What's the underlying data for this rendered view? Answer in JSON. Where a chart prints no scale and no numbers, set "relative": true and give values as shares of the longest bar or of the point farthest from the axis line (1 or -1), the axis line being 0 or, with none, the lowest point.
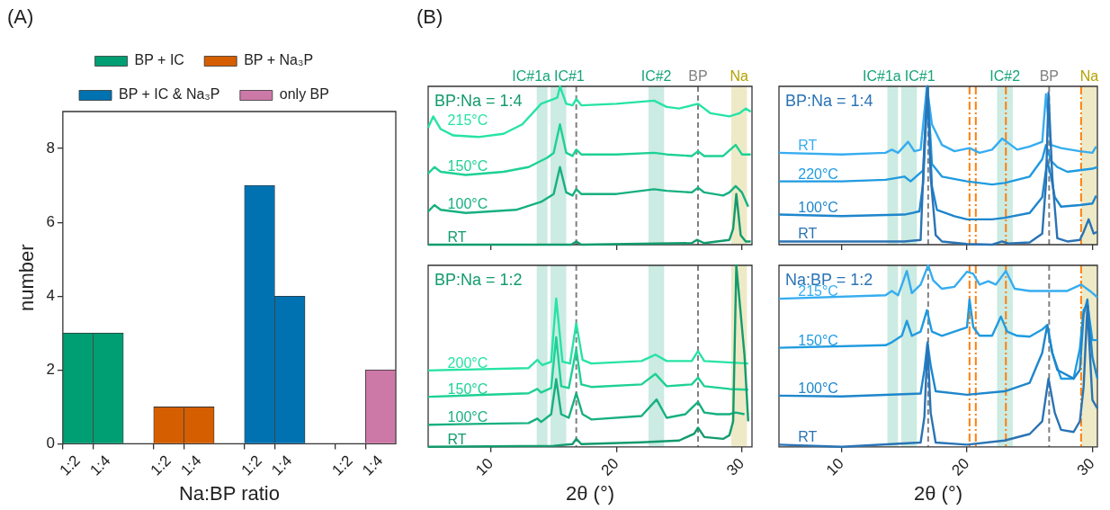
{
  "chart_data": [
    {
      "type": "bar",
      "xlabel": "Na:BP ratio",
      "ylabel": "number",
      "annotations": [
        "(A)"
      ],
      "categories": [
        "1:2",
        "1:4",
        null,
        "1:2",
        "1:4",
        null,
        "1:2",
        "1:4",
        null,
        "1:2",
        "1:4"
      ],
      "stacked": true,
      "ylim": [
        0,
        9
      ],
      "yticks": [
        0,
        2,
        4,
        6,
        8
      ],
      "legend": "top",
      "series": [
        {
          "name": "BP + IC",
          "color": "#009e73",
          "values": [
            3,
            3,
            null,
            null,
            null,
            null,
            null,
            null,
            null,
            null,
            null
          ]
        },
        {
          "name": "BP + Na₃P",
          "color": "#d55e00",
          "values": [
            null,
            null,
            null,
            1,
            1,
            null,
            null,
            null,
            null,
            null,
            null
          ]
        },
        {
          "name": "BP + IC & Na₃P",
          "color": "#0072b2",
          "values": [
            null,
            null,
            null,
            null,
            null,
            null,
            7,
            4,
            null,
            null,
            null
          ]
        },
        {
          "name": "only BP",
          "color": "#cc79a7",
          "values": [
            null,
            null,
            null,
            null,
            null,
            null,
            null,
            null,
            null,
            0,
            2
          ]
        }
      ]
    },
    {
      "type": "line",
      "title": "BP:Na = 1:4",
      "annotations": [
        "(B)"
      ],
      "relative": true,
      "marker": "none",
      "tick_labels": false,
      "xlim": [
        5,
        30.8
      ],
      "xticks": [
        10,
        20,
        30
      ],
      "bands": [
        {
          "axis": "x",
          "from": 13.65,
          "to": 14.5,
          "label": "IC#1a",
          "color": "#16a37a"
        },
        {
          "axis": "x",
          "from": 14.75,
          "to": 16.0,
          "label": "IC#1",
          "color": "#16a37a"
        },
        {
          "axis": "x",
          "from": 22.55,
          "to": 23.8,
          "label": "IC#2",
          "color": "#16a37a"
        },
        {
          "axis": "x",
          "from": 29.15,
          "to": 30.4,
          "label": "Na",
          "color": "#b3a100"
        }
      ],
      "ref_lines": [
        {
          "axis": "x",
          "value": 16.8,
          "color": "#808080",
          "line_style": "dashed"
        },
        {
          "axis": "x",
          "value": 26.5,
          "label": "BP",
          "color": "#808080",
          "line_style": "dashed"
        }
      ],
      "series": [
        {
          "name": "RT",
          "color": "#129b6e",
          "x": [
            5,
            16.4,
            16.8,
            17.2,
            26,
            26.4,
            27,
            29,
            29.3,
            29.55,
            29.9,
            30.3,
            30.7
          ],
          "values": [
            0,
            0,
            0.02,
            0,
            0.01,
            0.03,
            0.01,
            0.03,
            0.1,
            0.32,
            0.06,
            0.02,
            0.02
          ]
        },
        {
          "name": "100°C",
          "color": "#17b080",
          "x": [
            5,
            5.5,
            6,
            8,
            12,
            14,
            15,
            15.5,
            16,
            16.5,
            16.8,
            17.2,
            20,
            23,
            24,
            26,
            26.5,
            27,
            28.5,
            29,
            29.5,
            30,
            30.5
          ],
          "values": [
            0.21,
            0.25,
            0.22,
            0.2,
            0.22,
            0.27,
            0.32,
            0.49,
            0.33,
            0.31,
            0.35,
            0.32,
            0.32,
            0.35,
            0.34,
            0.33,
            0.36,
            0.33,
            0.31,
            0.33,
            0.37,
            0.33,
            0.24
          ]
        },
        {
          "name": "150°C",
          "color": "#1dd194",
          "x": [
            5,
            5.5,
            6,
            8,
            11,
            13,
            14.5,
            15,
            15.5,
            16,
            16.5,
            16.8,
            17.2,
            20,
            23,
            24,
            26,
            26.5,
            27,
            28.5,
            29.5,
            30,
            30.7
          ],
          "values": [
            0.45,
            0.49,
            0.46,
            0.44,
            0.46,
            0.49,
            0.55,
            0.58,
            0.76,
            0.58,
            0.56,
            0.6,
            0.57,
            0.57,
            0.58,
            0.57,
            0.56,
            0.59,
            0.56,
            0.56,
            0.63,
            0.57,
            0.57
          ]
        },
        {
          "name": "215°C",
          "color": "#27e3a6",
          "x": [
            5,
            5.4,
            6,
            7,
            9,
            11,
            12.5,
            14,
            15,
            15.3,
            15.5,
            16,
            16.5,
            16.8,
            17.2,
            20,
            23,
            24,
            25,
            26,
            26.5,
            27.5,
            29,
            29.8,
            30.3,
            30.7
          ],
          "values": [
            0.74,
            0.81,
            0.73,
            0.69,
            0.68,
            0.7,
            0.76,
            0.89,
            0.92,
            0.93,
            1,
            0.89,
            0.88,
            0.92,
            0.88,
            0.89,
            0.91,
            0.87,
            0.86,
            0.88,
            0.89,
            0.83,
            0.81,
            0.83,
            0.86,
            0.84
          ]
        }
      ]
    },
    {
      "type": "line",
      "title": "BP:Na = 1:4",
      "relative": true,
      "marker": "none",
      "tick_labels": false,
      "xlim": [
        5,
        30.4
      ],
      "xticks": [
        10,
        20,
        30
      ],
      "bands": [
        {
          "axis": "x",
          "from": 13.65,
          "to": 14.5,
          "label": "IC#1a",
          "color": "#16a37a"
        },
        {
          "axis": "x",
          "from": 14.75,
          "to": 16.0,
          "label": "IC#1",
          "color": "#16a37a"
        },
        {
          "axis": "x",
          "from": 22.4,
          "to": 23.65,
          "label": "IC#2",
          "color": "#16a37a"
        },
        {
          "axis": "x",
          "from": 29.1,
          "to": 30.4,
          "label": "Na",
          "color": "#b3a100"
        }
      ],
      "ref_lines": [
        {
          "axis": "x",
          "value": 16.9,
          "color": "#808080",
          "line_style": "dashed"
        },
        {
          "axis": "x",
          "value": 26.55,
          "label": "BP",
          "color": "#808080",
          "line_style": "dashed"
        },
        {
          "axis": "x",
          "value": 20.2,
          "color": "#ff7f0e",
          "line_style": "dashdot"
        },
        {
          "axis": "x",
          "value": 20.7,
          "color": "#ff7f0e",
          "line_style": "dashdot"
        },
        {
          "axis": "x",
          "value": 23.1,
          "color": "#ff7f0e",
          "line_style": "dashdot"
        },
        {
          "axis": "x",
          "value": 29.1,
          "color": "#ff7f0e",
          "line_style": "dashdot"
        }
      ],
      "series": [
        {
          "name": "RT",
          "color": "#2a73b5",
          "x": [
            5,
            10,
            15,
            16.3,
            16.6,
            16.85,
            17.1,
            17.5,
            18,
            20,
            22,
            22.8,
            23.3,
            25,
            26,
            26.3,
            26.5,
            26.8,
            27.2,
            28,
            29,
            29.3,
            29.7,
            30.1,
            30.4
          ],
          "values": [
            0.02,
            0.02,
            0.02,
            0.03,
            0.63,
            1,
            0.43,
            0.06,
            0.02,
            0.004,
            0,
            0.02,
            0.008,
            0.014,
            0.07,
            0.39,
            0.96,
            0.43,
            0.04,
            0.02,
            0.03,
            0.08,
            0.16,
            0.07,
            0.08
          ]
        },
        {
          "name": "100°C",
          "color": "#1e86cc",
          "x": [
            5,
            10,
            15,
            16.2,
            16.5,
            16.85,
            17.2,
            17.6,
            19,
            20,
            22,
            23,
            25,
            26,
            26.4,
            26.7,
            27,
            27.5,
            29,
            30,
            30.3
          ],
          "values": [
            0.19,
            0.18,
            0.19,
            0.21,
            0.39,
            0.98,
            0.37,
            0.22,
            0.18,
            0.16,
            0.16,
            0.17,
            0.2,
            0.3,
            0.53,
            0.43,
            0.3,
            0.24,
            0.25,
            0.26,
            0.31
          ]
        },
        {
          "name": "220°C",
          "color": "#1f9be0",
          "x": [
            5,
            10,
            13.5,
            15,
            15.5,
            16.5,
            16.85,
            17.2,
            18,
            20,
            22,
            23,
            25,
            26,
            26.3,
            26.7,
            27.2,
            28,
            30,
            30.4
          ],
          "values": [
            0.4,
            0.4,
            0.41,
            0.43,
            0.4,
            0.47,
            1,
            0.51,
            0.43,
            0.4,
            0.38,
            0.39,
            0.43,
            0.54,
            0.63,
            0.53,
            0.49,
            0.46,
            0.48,
            0.49
          ]
        },
        {
          "name": "RT",
          "color": "#36adf0",
          "x": [
            5,
            10,
            13.5,
            14,
            14.5,
            15.3,
            15.8,
            16.3,
            16.8,
            17.2,
            18,
            19,
            20.2,
            21,
            22,
            22.8,
            23.5,
            24,
            25,
            26,
            26.3,
            26.7,
            27.5,
            29,
            30,
            30.3
          ],
          "values": [
            0.58,
            0.57,
            0.58,
            0.6,
            0.58,
            0.65,
            0.59,
            0.6,
            1,
            0.76,
            0.63,
            0.59,
            0.61,
            0.58,
            0.6,
            0.67,
            0.63,
            0.6,
            0.62,
            0.65,
            0.95,
            0.63,
            0.61,
            0.59,
            0.58,
            0.62
          ]
        }
      ]
    },
    {
      "type": "line",
      "title": "BP:Na = 1:2",
      "relative": true,
      "marker": "none",
      "tick_labels": "x",
      "xlabel": "2θ (°)",
      "xlim": [
        5,
        30.8
      ],
      "xticks": [
        10,
        20,
        30
      ],
      "bands": [
        {
          "axis": "x",
          "from": 13.65,
          "to": 14.5,
          "color": "#16a37a"
        },
        {
          "axis": "x",
          "from": 14.75,
          "to": 16.0,
          "color": "#16a37a"
        },
        {
          "axis": "x",
          "from": 22.55,
          "to": 23.8,
          "color": "#16a37a"
        },
        {
          "axis": "x",
          "from": 29.15,
          "to": 30.4,
          "color": "#b3a100"
        }
      ],
      "ref_lines": [
        {
          "axis": "x",
          "value": 16.8,
          "color": "#808080",
          "line_style": "dashed"
        },
        {
          "axis": "x",
          "value": 26.5,
          "color": "#808080",
          "line_style": "dashed"
        }
      ],
      "series": [
        {
          "name": "RT",
          "color": "#129b6e",
          "x": [
            5,
            15,
            16.5,
            16.8,
            17.2,
            22,
            25,
            26.2,
            26.5,
            27,
            28.5,
            29,
            29.3,
            29.55,
            30.2,
            30.5
          ],
          "values": [
            0,
            0.006,
            0.015,
            0.044,
            0.015,
            0.025,
            0.035,
            0.073,
            0.106,
            0.054,
            0.044,
            0.064,
            0.141,
            1,
            0.508,
            0.141
          ]
        },
        {
          "name": "100°C",
          "color": "#17b080",
          "x": [
            5,
            13,
            13.7,
            14,
            14.8,
            15.2,
            15.6,
            16.2,
            16.8,
            17.3,
            18,
            22,
            23.2,
            24,
            25.5,
            26.5,
            27,
            28,
            29,
            29.5,
            30.2
          ],
          "values": [
            0.122,
            0.131,
            0.156,
            0.137,
            0.18,
            0.373,
            0.18,
            0.16,
            0.295,
            0.18,
            0.151,
            0.17,
            0.261,
            0.16,
            0.18,
            0.247,
            0.189,
            0.18,
            0.18,
            0.189,
            0.18
          ]
        },
        {
          "name": "150°C",
          "color": "#1dd194",
          "x": [
            5,
            13,
            13.7,
            14,
            14.8,
            15.2,
            15.6,
            16.2,
            16.8,
            17.2,
            18,
            22,
            23.1,
            24,
            26,
            26.5,
            27,
            29,
            30.5
          ],
          "values": [
            0.276,
            0.295,
            0.319,
            0.299,
            0.324,
            0.604,
            0.334,
            0.324,
            0.537,
            0.344,
            0.33,
            0.344,
            0.402,
            0.334,
            0.344,
            0.382,
            0.334,
            0.319,
            0.315
          ]
        },
        {
          "name": "200°C",
          "color": "#27e3a6",
          "x": [
            5,
            13,
            13.7,
            14.1,
            14.8,
            15.2,
            15.7,
            16.3,
            16.8,
            17.3,
            18,
            22,
            23.1,
            24,
            26,
            26.5,
            27,
            30.5
          ],
          "values": [
            0.421,
            0.434,
            0.479,
            0.45,
            0.469,
            0.817,
            0.469,
            0.459,
            0.681,
            0.479,
            0.459,
            0.473,
            0.508,
            0.473,
            0.473,
            0.527,
            0.473,
            0.459
          ]
        }
      ]
    },
    {
      "type": "line",
      "title": "Na:BP = 1:2",
      "relative": true,
      "marker": "none",
      "tick_labels": "x",
      "xlabel": "2θ (°)",
      "xlim": [
        5,
        30.4
      ],
      "xticks": [
        10,
        20,
        30
      ],
      "bands": [
        {
          "axis": "x",
          "from": 13.65,
          "to": 14.5,
          "color": "#16a37a"
        },
        {
          "axis": "x",
          "from": 14.75,
          "to": 16.0,
          "color": "#16a37a"
        },
        {
          "axis": "x",
          "from": 22.4,
          "to": 23.65,
          "color": "#16a37a"
        },
        {
          "axis": "x",
          "from": 29.1,
          "to": 30.4,
          "color": "#b3a100"
        }
      ],
      "ref_lines": [
        {
          "axis": "x",
          "value": 16.9,
          "color": "#808080",
          "line_style": "dashed"
        },
        {
          "axis": "x",
          "value": 26.55,
          "color": "#808080",
          "line_style": "dashed"
        },
        {
          "axis": "x",
          "value": 20.2,
          "color": "#ff7f0e",
          "line_style": "dashdot"
        },
        {
          "axis": "x",
          "value": 20.7,
          "color": "#ff7f0e",
          "line_style": "dashdot"
        },
        {
          "axis": "x",
          "value": 23.1,
          "color": "#ff7f0e",
          "line_style": "dashdot"
        },
        {
          "axis": "x",
          "value": 29.1,
          "color": "#ff7f0e",
          "line_style": "dashdot"
        }
      ],
      "series": [
        {
          "name": "RT",
          "color": "#2a73b5",
          "x": [
            5,
            10,
            16.3,
            16.6,
            16.85,
            17.1,
            17.5,
            20,
            23,
            25,
            26,
            26.5,
            27,
            27.5,
            28.5,
            29,
            29.3,
            29.6,
            30,
            30.4
          ],
          "values": [
            0.012,
            0,
            0.024,
            0.165,
            0.565,
            0.188,
            0.024,
            0.012,
            0.035,
            0.071,
            0.141,
            0.376,
            0.188,
            0.094,
            0.082,
            0.141,
            0.329,
            0.776,
            0.259,
            0.212
          ]
        },
        {
          "name": "100°C",
          "color": "#1e86cc",
          "x": [
            5,
            10,
            16.3,
            16.6,
            16.85,
            17.1,
            17.5,
            20,
            23,
            25,
            26,
            26.4,
            26.8,
            27.2,
            28.5,
            29,
            29.3,
            29.6,
            30,
            30.4
          ],
          "values": [
            0.282,
            0.278,
            0.294,
            0.424,
            0.576,
            0.447,
            0.306,
            0.287,
            0.306,
            0.353,
            0.518,
            0.671,
            0.518,
            0.424,
            0.376,
            0.424,
            0.729,
            0.812,
            0.494,
            0.376
          ]
        },
        {
          "name": "150°C",
          "color": "#1f9be0",
          "x": [
            5,
            13.5,
            14,
            14.8,
            15.2,
            15.6,
            16.3,
            16.8,
            17.2,
            18,
            20,
            20.2,
            20.5,
            21,
            22,
            22.7,
            23.2,
            24,
            25,
            26,
            26.4,
            26.8,
            27.5,
            28.5,
            29,
            29.3,
            29.6,
            30,
            30.4
          ],
          "values": [
            0.546,
            0.56,
            0.576,
            0.612,
            0.694,
            0.612,
            0.635,
            0.753,
            0.635,
            0.612,
            0.659,
            0.812,
            0.659,
            0.612,
            0.612,
            0.718,
            0.635,
            0.612,
            0.607,
            0.647,
            0.671,
            0.518,
            0.376,
            0.376,
            0.541,
            0.753,
            0.788,
            0.588,
            0.588
          ]
        },
        {
          "name": "215°C",
          "color": "#36adf0",
          "x": [
            5,
            13.5,
            14,
            14.5,
            15.2,
            15.6,
            16.3,
            16.9,
            17.3,
            18,
            19,
            20,
            20.5,
            21,
            21.7,
            22.3,
            23.1,
            23.8,
            25,
            28,
            29.1,
            29.8,
            30.4
          ],
          "values": [
            0.816,
            0.835,
            0.859,
            0.835,
            0.969,
            0.847,
            0.894,
            1,
            0.918,
            0.871,
            0.882,
            0.965,
            0.953,
            0.894,
            0.913,
            0.894,
            0.969,
            0.871,
            0.859,
            0.859,
            0.894,
            0.859,
            0.824
          ]
        }
      ]
    }
  ]
}
